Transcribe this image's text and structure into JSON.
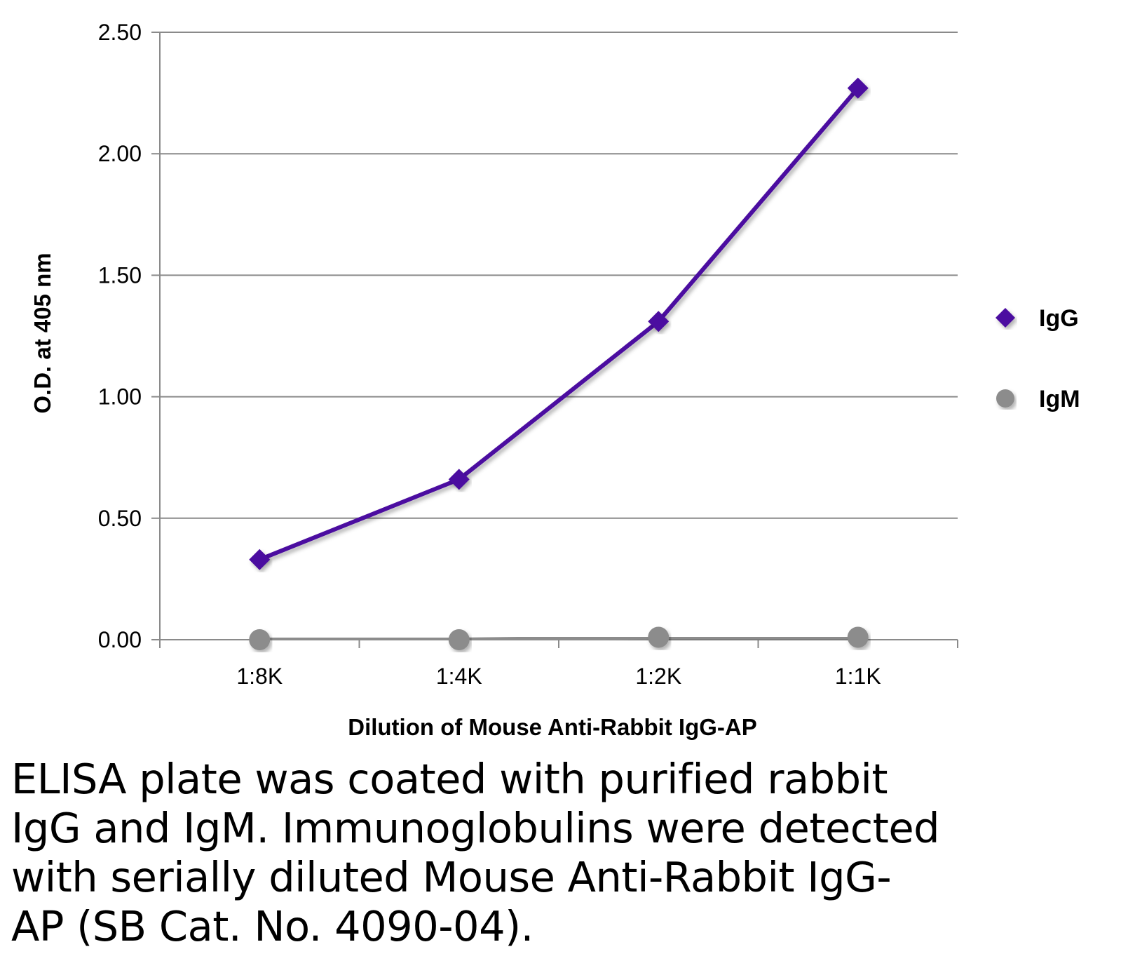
{
  "chart_data": {
    "type": "line",
    "title": "",
    "xlabel": "Dilution of Mouse Anti-Rabbit IgG-AP",
    "ylabel": "O.D. at 405 nm",
    "categories": [
      "1:8K",
      "1:4K",
      "1:2K",
      "1:1K"
    ],
    "ylim": [
      0,
      2.5
    ],
    "yticks": [
      "0.00",
      "0.50",
      "1.00",
      "1.50",
      "2.00",
      "2.50"
    ],
    "ytick_values": [
      0,
      0.5,
      1.0,
      1.5,
      2.0,
      2.5
    ],
    "grid": "horizontal",
    "legend_position": "right",
    "series": [
      {
        "name": "IgG",
        "color": "#4b0aa0",
        "marker": "diamond",
        "values": [
          0.33,
          0.66,
          1.31,
          2.27
        ]
      },
      {
        "name": "IgM",
        "color": "#8c8c8c",
        "marker": "circle",
        "values": [
          0.0,
          0.0,
          0.01,
          0.01
        ]
      }
    ]
  },
  "caption": {
    "lines": [
      "ELISA plate was coated with purified rabbit",
      "IgG and IgM.  Immunoglobulins were detected",
      "with serially diluted Mouse Anti-Rabbit IgG-",
      "AP (SB Cat. No. 4090-04)."
    ]
  }
}
